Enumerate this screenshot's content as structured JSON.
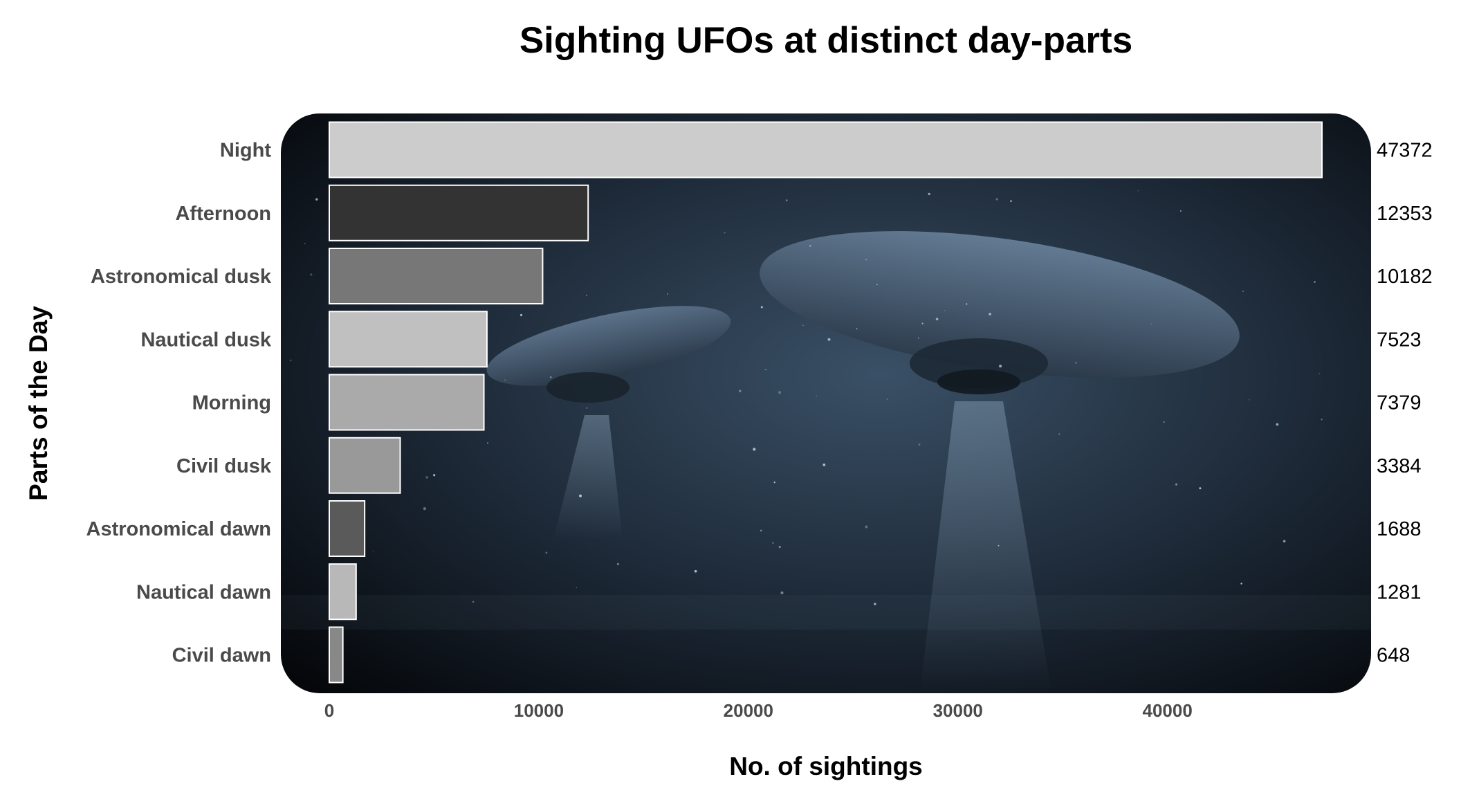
{
  "chart_data": {
    "type": "bar",
    "orientation": "horizontal",
    "title": "Sighting UFOs at distinct day-parts",
    "xlabel": "No. of sightings",
    "ylabel": "Parts of the Day",
    "xlim": [
      0,
      47372
    ],
    "xticks": [
      0,
      10000,
      20000,
      30000,
      40000
    ],
    "xtick_labels": [
      "0",
      "10000",
      "20000",
      "30000",
      "40000"
    ],
    "categories": [
      "Night",
      "Afternoon",
      "Astronomical dusk",
      "Nautical dusk",
      "Morning",
      "Civil dusk",
      "Astronomical dawn",
      "Nautical dawn",
      "Civil dawn"
    ],
    "values": [
      47372,
      12353,
      10182,
      7523,
      7379,
      3384,
      1688,
      1281,
      648
    ],
    "value_labels": [
      "47372",
      "12353",
      "10182",
      "7523",
      "7379",
      "3384",
      "1688",
      "1281",
      "648"
    ],
    "bar_colors": [
      "#cccccc",
      "#333333",
      "#777777",
      "#c0c0c0",
      "#aaaaaa",
      "#999999",
      "#5a5a5a",
      "#b8b8b8",
      "#888888"
    ],
    "background": "night sky with flying saucers",
    "grid": false,
    "legend": "none"
  }
}
